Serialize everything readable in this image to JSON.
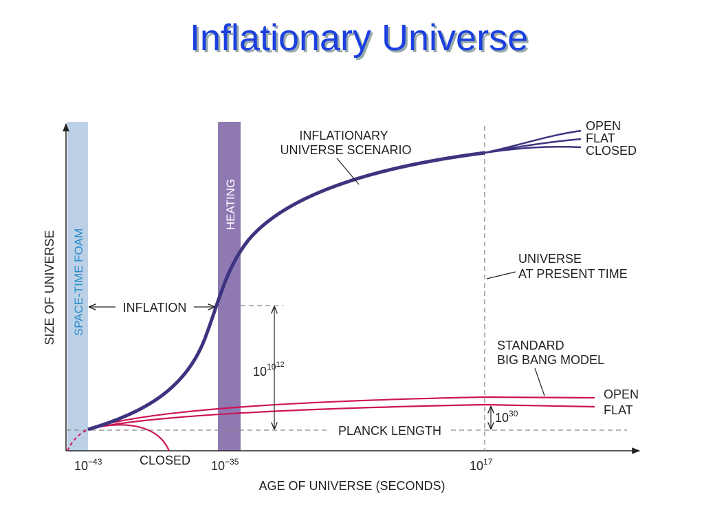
{
  "title": "Inflationary Universe",
  "y_axis_label": "SIZE OF UNIVERSE",
  "x_axis_label": "AGE OF UNIVERSE (SECONDS)",
  "x_ticks": [
    {
      "base": "10",
      "exponent": "−43"
    },
    {
      "base": "10",
      "exponent": "−35"
    },
    {
      "base": "10",
      "exponent": "17"
    }
  ],
  "bands": {
    "foam": "SPACE-TIME FOAM",
    "heating": "HEATING"
  },
  "inflationary": {
    "label": [
      "INFLATIONARY",
      "UNIVERSE SCENARIO"
    ],
    "endings": [
      "OPEN",
      "FLAT",
      "CLOSED"
    ]
  },
  "present_time": [
    "UNIVERSE",
    "AT PRESENT TIME"
  ],
  "standard": {
    "label": [
      "STANDARD",
      "BIG BANG MODEL"
    ],
    "endings": [
      "OPEN",
      "FLAT"
    ],
    "closed": "CLOSED"
  },
  "inflation": "INFLATION",
  "planck_length": "PLANCK LENGTH",
  "growth_inflation": {
    "base": "10",
    "exponent": "10",
    "exponent_exponent": "12"
  },
  "growth_standard": {
    "base": "10",
    "exponent": "30"
  }
}
